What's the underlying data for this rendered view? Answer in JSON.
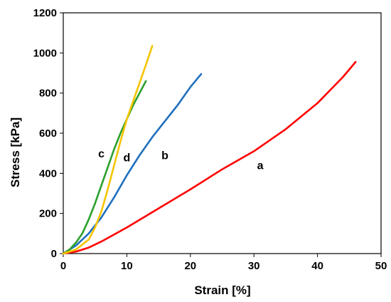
{
  "chart_data": {
    "type": "line",
    "xlabel": "Strain [%]",
    "ylabel": "Stress [kPa]",
    "xlim": [
      0,
      50
    ],
    "ylim": [
      0,
      1200
    ],
    "xticks": [
      "0",
      "10",
      "20",
      "30",
      "40",
      "50"
    ],
    "yticks": [
      "0",
      "200",
      "400",
      "600",
      "800",
      "1000",
      "1200"
    ],
    "grid": false,
    "series": [
      {
        "name": "a",
        "color": "#ff0000",
        "x": [
          0,
          2,
          4,
          6,
          10,
          15,
          20,
          25,
          30,
          35,
          40,
          44,
          46
        ],
        "y": [
          0,
          10,
          30,
          60,
          130,
          225,
          320,
          420,
          510,
          620,
          750,
          880,
          955
        ]
      },
      {
        "name": "b",
        "color": "#1f6fbf",
        "x": [
          0,
          2,
          4,
          6,
          8,
          10,
          12,
          14,
          16,
          18,
          20,
          21.7
        ],
        "y": [
          0,
          40,
          100,
          180,
          280,
          390,
          490,
          580,
          660,
          740,
          830,
          895
        ]
      },
      {
        "name": "c",
        "color": "#2ca02c",
        "x": [
          0,
          1,
          2,
          3,
          4,
          5,
          6,
          7,
          8,
          9,
          10,
          11,
          12,
          13
        ],
        "y": [
          0,
          20,
          55,
          100,
          170,
          250,
          340,
          430,
          520,
          600,
          670,
          740,
          800,
          860
        ]
      },
      {
        "name": "d",
        "color": "#f5c400",
        "x": [
          0,
          2,
          4,
          5,
          6,
          7,
          8,
          9,
          10,
          11,
          12,
          13,
          14
        ],
        "y": [
          0,
          20,
          70,
          130,
          210,
          320,
          440,
          560,
          670,
          760,
          850,
          940,
          1035
        ]
      }
    ]
  }
}
